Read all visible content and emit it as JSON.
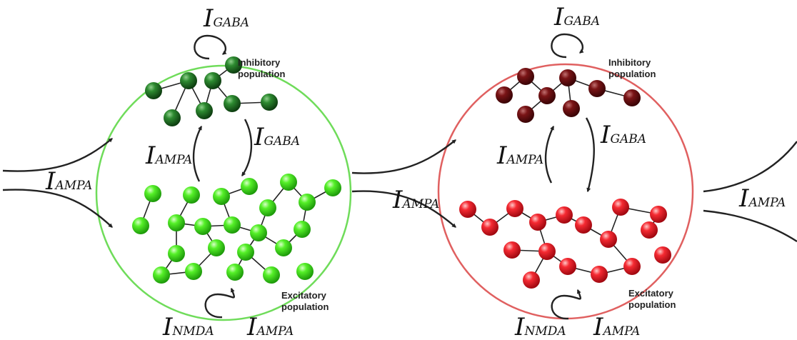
{
  "columns": [
    {
      "theme": "green",
      "boundary_color": "#6fdc5a",
      "inhibitory_color": "#1f6b22",
      "excitatory_color": "#3ee01e",
      "inhibitory_label": [
        "Inhibitory",
        "population"
      ],
      "excitatory_label": [
        "Excitatory",
        "population"
      ],
      "currents": {
        "self_inhibitory": {
          "main": "I",
          "sub": "GABA"
        },
        "inh_to_exc": {
          "main": "I",
          "sub": "GABA"
        },
        "exc_to_inh": {
          "main": "I",
          "sub": "AMPA"
        },
        "self_excitatory_nmda": {
          "main": "I",
          "sub": "NMDA"
        },
        "self_excitatory_ampa": {
          "main": "I",
          "sub": "AMPA"
        },
        "external_input": {
          "main": "I",
          "sub": "AMPA"
        }
      }
    },
    {
      "theme": "red",
      "boundary_color": "#e06060",
      "inhibitory_color": "#6b0f10",
      "excitatory_color": "#f0202a",
      "inhibitory_label": [
        "Inhibitory",
        "population"
      ],
      "excitatory_label": [
        "Excitatory",
        "population"
      ],
      "currents": {
        "self_inhibitory": {
          "main": "I",
          "sub": "GABA"
        },
        "inh_to_exc": {
          "main": "I",
          "sub": "GABA"
        },
        "exc_to_inh": {
          "main": "I",
          "sub": "AMPA"
        },
        "self_excitatory_nmda": {
          "main": "I",
          "sub": "NMDA"
        },
        "self_excitatory_ampa": {
          "main": "I",
          "sub": "AMPA"
        },
        "external_input": {
          "main": "I",
          "sub": "AMPA"
        }
      }
    }
  ],
  "outgoing_current": {
    "main": "I",
    "sub": "AMPA"
  }
}
